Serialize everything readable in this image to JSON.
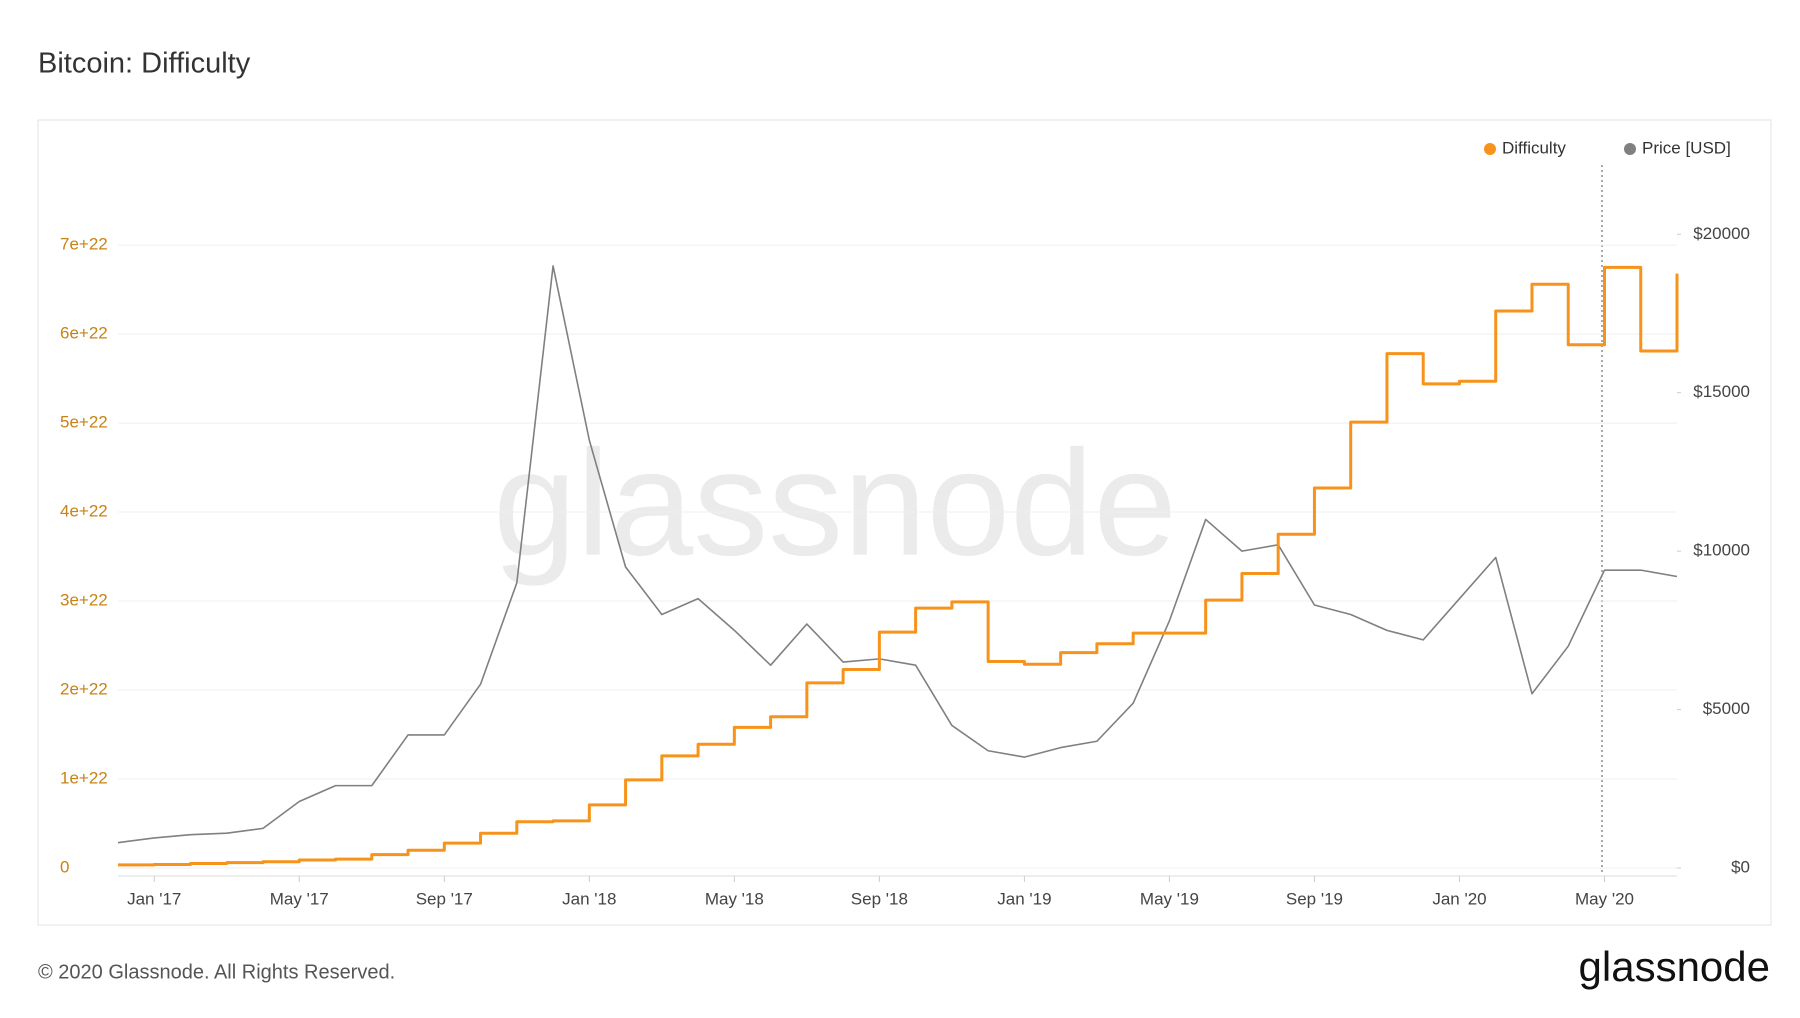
{
  "chart_data": {
    "type": "line",
    "title": "Bitcoin: Difficulty",
    "watermark": "glassnode",
    "x": [
      "2016-12",
      "2017-01",
      "2017-02",
      "2017-03",
      "2017-04",
      "2017-05",
      "2017-06",
      "2017-07",
      "2017-08",
      "2017-09",
      "2017-10",
      "2017-11",
      "2017-12",
      "2018-01",
      "2018-02",
      "2018-03",
      "2018-04",
      "2018-05",
      "2018-06",
      "2018-07",
      "2018-08",
      "2018-09",
      "2018-10",
      "2018-11",
      "2018-12",
      "2019-01",
      "2019-02",
      "2019-03",
      "2019-04",
      "2019-05",
      "2019-06",
      "2019-07",
      "2019-08",
      "2019-09",
      "2019-10",
      "2019-11",
      "2019-12",
      "2020-01",
      "2020-02",
      "2020-03",
      "2020-04",
      "2020-05",
      "2020-06",
      "2020-07"
    ],
    "xlim": [
      "2016-12",
      "2020-07"
    ],
    "xticks": [
      {
        "value": "2017-01",
        "label": "Jan '17"
      },
      {
        "value": "2017-05",
        "label": "May '17"
      },
      {
        "value": "2017-09",
        "label": "Sep '17"
      },
      {
        "value": "2018-01",
        "label": "Jan '18"
      },
      {
        "value": "2018-05",
        "label": "May '18"
      },
      {
        "value": "2018-09",
        "label": "Sep '18"
      },
      {
        "value": "2019-01",
        "label": "Jan '19"
      },
      {
        "value": "2019-05",
        "label": "May '19"
      },
      {
        "value": "2019-09",
        "label": "Sep '19"
      },
      {
        "value": "2020-01",
        "label": "Jan '20"
      },
      {
        "value": "2020-05",
        "label": "May '20"
      }
    ],
    "ylim": [
      0,
      7.9e+22
    ],
    "yticks": [
      {
        "value": 0,
        "label": "0"
      },
      {
        "value": 1e+22,
        "label": "1e+22"
      },
      {
        "value": 2e+22,
        "label": "2e+22"
      },
      {
        "value": 3e+22,
        "label": "3e+22"
      },
      {
        "value": 4e+22,
        "label": "4e+22"
      },
      {
        "value": 5e+22,
        "label": "5e+22"
      },
      {
        "value": 6e+22,
        "label": "6e+22"
      },
      {
        "value": 7e+22,
        "label": "7e+22"
      }
    ],
    "y2lim": [
      0,
      22186
    ],
    "y2ticks": [
      {
        "value": 0,
        "label": "$0"
      },
      {
        "value": 5000,
        "label": "$5000"
      },
      {
        "value": 10000,
        "label": "$10000"
      },
      {
        "value": 15000,
        "label": "$15000"
      },
      {
        "value": 20000,
        "label": "$20000"
      }
    ],
    "grid": true,
    "legend": "top-right",
    "series": [
      {
        "name": "Difficulty",
        "color": "#f7931a",
        "step": true,
        "values": [
          3.5e+20,
          4e+20,
          5e+20,
          6e+20,
          7e+20,
          9e+20,
          1e+21,
          1.5e+21,
          2e+21,
          2.8e+21,
          3.9e+21,
          5.2e+21,
          5.3e+21,
          7.1e+21,
          9.9e+21,
          1.26e+22,
          1.39e+22,
          1.58e+22,
          1.7e+22,
          2.08e+22,
          2.23e+22,
          2.65e+22,
          2.92e+22,
          2.99e+22,
          2.32e+22,
          2.29e+22,
          2.42e+22,
          2.52e+22,
          2.64e+22,
          2.64e+22,
          3.01e+22,
          3.31e+22,
          3.75e+22,
          4.27e+22,
          5.01e+22,
          5.78e+22,
          5.44e+22,
          5.47e+22,
          6.26e+22,
          6.56e+22,
          5.88e+22,
          6.75e+22,
          5.81e+22,
          6.68e+22
        ]
      },
      {
        "name": "Price [USD]",
        "color": "#808080",
        "axis": "y2",
        "values": [
          800,
          950,
          1050,
          1100,
          1250,
          2100,
          2600,
          2600,
          4200,
          4200,
          5800,
          9000,
          19000,
          13500,
          9500,
          8000,
          8500,
          7500,
          6400,
          7700,
          6500,
          6600,
          6400,
          4500,
          3700,
          3500,
          3800,
          4000,
          5200,
          7800,
          11000,
          10000,
          10200,
          8300,
          8000,
          7500,
          7200,
          8500,
          9800,
          5500,
          7000,
          9400,
          9400,
          9200
        ]
      }
    ]
  },
  "footer": {
    "copyright": "© 2020 Glassnode. All Rights Reserved.",
    "brand": "glassnode"
  }
}
